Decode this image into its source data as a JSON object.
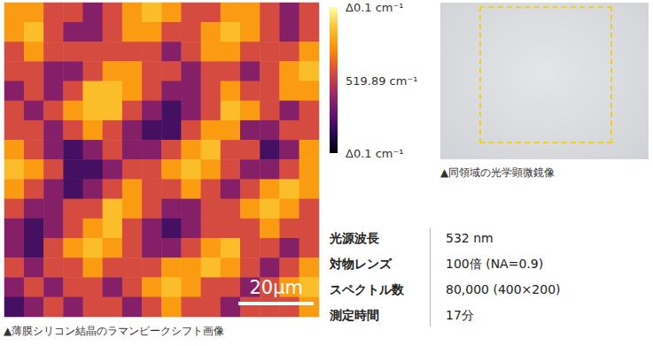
{
  "chart_data": {
    "type": "heatmap",
    "title": "▲薄膜シリコン結晶のラマンピークシフト画像",
    "tick_labels": false,
    "extent": 84,
    "scale_bar": {
      "label": "20μm",
      "length": 20
    },
    "color_range": [
      519.79,
      519.99
    ],
    "colorbar_ticks": [
      {
        "value": 519.99,
        "label": "Δ0.1 cm⁻¹"
      },
      {
        "value": 519.89,
        "label": "519.89 cm⁻¹"
      },
      {
        "value": 519.79,
        "label": "Δ0.1 cm⁻¹"
      }
    ],
    "cells": [
      [
        519.94,
        519.94,
        519.9,
        519.9,
        519.86,
        519.9,
        519.94,
        519.96,
        519.94,
        519.9,
        519.9,
        519.94,
        519.94,
        519.9,
        519.86,
        519.9
      ],
      [
        519.94,
        519.96,
        519.9,
        519.86,
        519.86,
        519.9,
        519.94,
        519.94,
        519.9,
        519.9,
        519.94,
        519.96,
        519.94,
        519.9,
        519.86,
        519.9
      ],
      [
        519.9,
        519.94,
        519.9,
        519.9,
        519.9,
        519.9,
        519.9,
        519.9,
        519.86,
        519.9,
        519.94,
        519.94,
        519.9,
        519.9,
        519.9,
        519.94
      ],
      [
        519.9,
        519.9,
        519.86,
        519.86,
        519.9,
        519.94,
        519.94,
        519.9,
        519.9,
        519.86,
        519.9,
        519.9,
        519.86,
        519.9,
        519.94,
        519.96
      ],
      [
        519.86,
        519.9,
        519.86,
        519.9,
        519.96,
        519.96,
        519.94,
        519.9,
        519.86,
        519.86,
        519.9,
        519.94,
        519.9,
        519.9,
        519.94,
        519.94
      ],
      [
        519.9,
        519.86,
        519.9,
        519.94,
        519.96,
        519.96,
        519.9,
        519.86,
        519.83,
        519.86,
        519.9,
        519.96,
        519.94,
        519.9,
        519.86,
        519.9
      ],
      [
        519.9,
        519.9,
        519.86,
        519.9,
        519.94,
        519.9,
        519.86,
        519.83,
        519.83,
        519.9,
        519.94,
        519.94,
        519.86,
        519.86,
        519.9,
        519.9
      ],
      [
        519.94,
        519.9,
        519.86,
        519.83,
        519.86,
        519.9,
        519.86,
        519.86,
        519.9,
        519.94,
        519.96,
        519.9,
        519.9,
        519.83,
        519.86,
        519.94
      ],
      [
        519.96,
        519.94,
        519.9,
        519.83,
        519.83,
        519.86,
        519.9,
        519.9,
        519.94,
        519.96,
        519.94,
        519.9,
        519.86,
        519.86,
        519.9,
        519.94
      ],
      [
        519.94,
        519.9,
        519.86,
        519.83,
        519.86,
        519.9,
        519.94,
        519.9,
        519.9,
        519.94,
        519.9,
        519.86,
        519.9,
        519.94,
        519.96,
        519.94
      ],
      [
        519.9,
        519.86,
        519.86,
        519.9,
        519.9,
        519.96,
        519.94,
        519.9,
        519.86,
        519.86,
        519.9,
        519.9,
        519.94,
        519.96,
        519.94,
        519.9
      ],
      [
        519.86,
        519.83,
        519.86,
        519.9,
        519.94,
        519.96,
        519.9,
        519.86,
        519.83,
        519.86,
        519.9,
        519.9,
        519.9,
        519.94,
        519.9,
        519.9
      ],
      [
        519.86,
        519.83,
        519.9,
        519.94,
        519.96,
        519.94,
        519.9,
        519.86,
        519.86,
        519.9,
        519.94,
        519.96,
        519.9,
        519.9,
        519.86,
        519.9
      ],
      [
        519.9,
        519.86,
        519.9,
        519.9,
        519.94,
        519.9,
        519.9,
        519.9,
        519.94,
        519.94,
        519.96,
        519.94,
        519.9,
        519.86,
        519.9,
        519.94
      ],
      [
        519.86,
        519.9,
        519.86,
        519.9,
        519.9,
        519.86,
        519.9,
        519.94,
        519.96,
        519.94,
        519.9,
        519.9,
        519.86,
        519.9,
        519.94,
        519.96
      ],
      [
        519.83,
        519.86,
        519.9,
        519.86,
        519.9,
        519.9,
        519.86,
        519.9,
        519.94,
        519.9,
        519.9,
        519.86,
        519.9,
        519.9,
        519.9,
        519.94
      ]
    ]
  },
  "optical_image": {
    "caption": "▲同領域の光学顕微鏡像"
  },
  "table": {
    "rows": [
      [
        "光源波長",
        "532 nm"
      ],
      [
        "対物レンズ",
        "100倍 (NA=0.9)"
      ],
      [
        "スペクトル数",
        "80,000 (400×200)"
      ],
      [
        "測定時間",
        "17分"
      ]
    ]
  }
}
